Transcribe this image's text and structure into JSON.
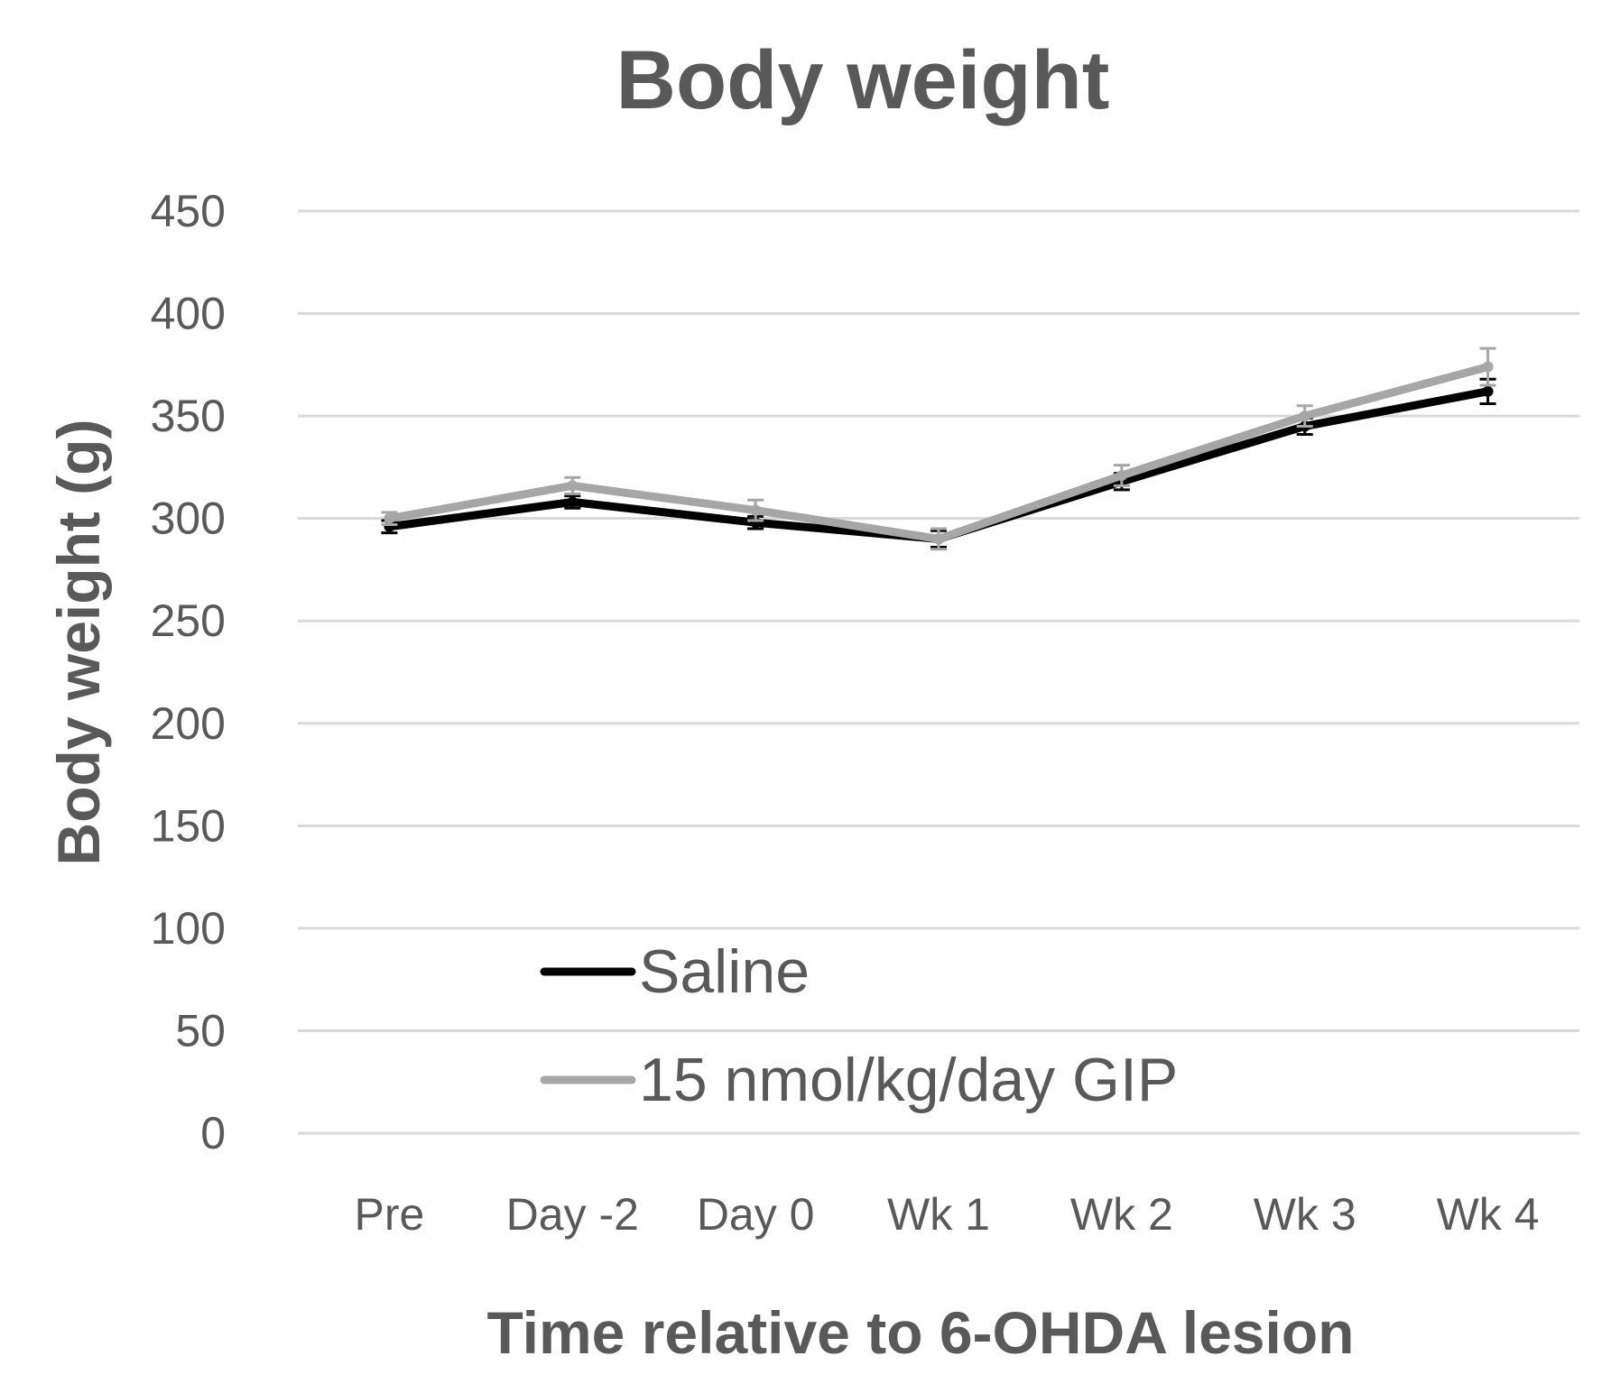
{
  "chart_data": {
    "type": "line",
    "title": "Body weight",
    "xlabel": "Time relative to 6-OHDA lesion",
    "ylabel": "Body weight (g)",
    "categories": [
      "Pre",
      "Day -2",
      "Day 0",
      "Wk 1",
      "Wk 2",
      "Wk 3",
      "Wk 4"
    ],
    "ylim": [
      0,
      450
    ],
    "yticks": [
      0,
      50,
      100,
      150,
      200,
      250,
      300,
      350,
      400,
      450
    ],
    "grid": true,
    "legend_position": "bottom-left",
    "series": [
      {
        "name": "Saline",
        "color": "#000000",
        "values": [
          296,
          308,
          298,
          290,
          318,
          345,
          362
        ],
        "errors": [
          3,
          3,
          3,
          4,
          4,
          4,
          6
        ]
      },
      {
        "name": "15 nmol/kg/day GIP",
        "color": "#a6a6a6",
        "values": [
          300,
          316,
          304,
          290,
          321,
          350,
          374
        ],
        "errors": [
          3,
          4,
          5,
          5,
          5,
          5,
          9
        ]
      }
    ]
  }
}
